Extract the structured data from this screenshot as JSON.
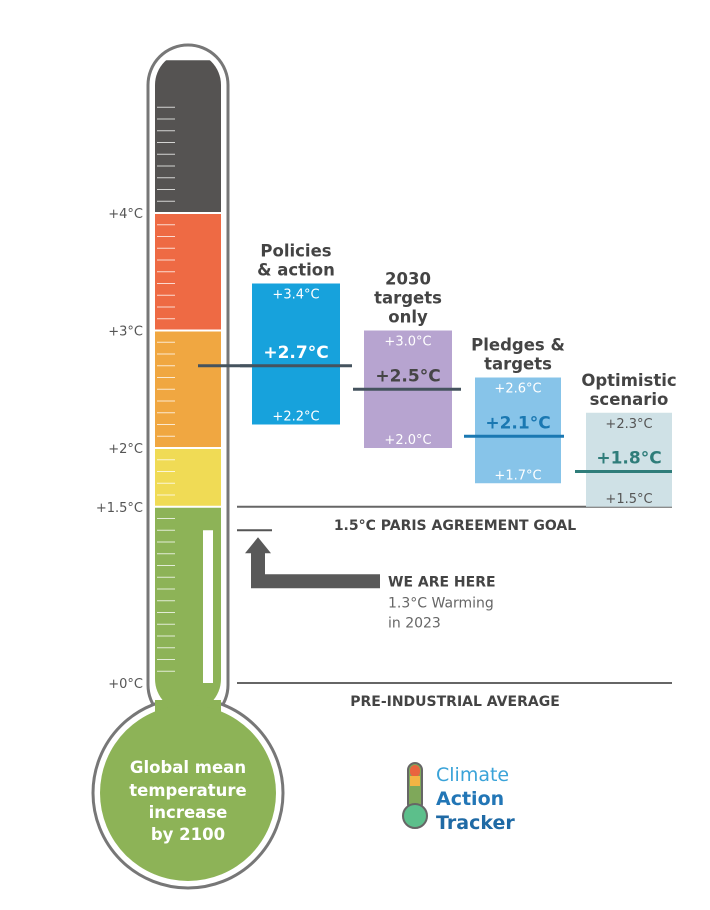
{
  "chart_data": {
    "type": "thermometer-range",
    "axis": {
      "ticks": [
        {
          "value": 0,
          "label": "+0°C"
        },
        {
          "value": 1.5,
          "label": "+1.5°C"
        },
        {
          "value": 2,
          "label": "+2°C"
        },
        {
          "value": 3,
          "label": "+3°C"
        },
        {
          "value": 4,
          "label": "+4°C"
        }
      ],
      "ylim": [
        0,
        5.3
      ]
    },
    "bands": [
      {
        "from": 0,
        "to": 1.5,
        "color": "#8db357"
      },
      {
        "from": 1.5,
        "to": 2.0,
        "color": "#f0db55"
      },
      {
        "from": 2.0,
        "to": 3.0,
        "color": "#f0a741"
      },
      {
        "from": 3.0,
        "to": 4.0,
        "color": "#ee6a44"
      },
      {
        "from": 4.0,
        "to": 5.3,
        "color": "#555352"
      }
    ],
    "bulb_label": [
      "Global mean",
      "temperature",
      "increase",
      "by 2100"
    ],
    "current_warming": {
      "value": 1.3,
      "title": "WE ARE HERE",
      "subtitle": [
        "1.3°C Warming",
        "in 2023"
      ]
    },
    "reference_lines": [
      {
        "value": 1.5,
        "label": "1.5°C PARIS AGREEMENT GOAL"
      },
      {
        "value": 0,
        "label": "PRE-INDUSTRIAL AVERAGE"
      }
    ],
    "scenarios": [
      {
        "title": [
          "Policies",
          "& action"
        ],
        "low": 2.2,
        "mid": 2.7,
        "high": 3.4,
        "low_label": "+2.2°C",
        "mid_label": "+2.7°C",
        "high_label": "+3.4°C",
        "fill": "#17a2dc",
        "line": "#45535e",
        "mid_text": "#ffffff",
        "range_text": "#ffffff"
      },
      {
        "title": [
          "2030",
          "targets",
          "only"
        ],
        "low": 2.0,
        "mid": 2.5,
        "high": 3.0,
        "low_label": "+2.0°C",
        "mid_label": "+2.5°C",
        "high_label": "+3.0°C",
        "fill": "#b7a4d0",
        "line": "#45535e",
        "mid_text": "#454545",
        "range_text": "#ffffff"
      },
      {
        "title": [
          "Pledges &",
          "targets"
        ],
        "low": 1.7,
        "mid": 2.1,
        "high": 2.6,
        "low_label": "+1.7°C",
        "mid_label": "+2.1°C",
        "high_label": "+2.6°C",
        "fill": "#87c4e9",
        "line": "#1a78b2",
        "mid_text": "#1a78b2",
        "range_text": "#ffffff"
      },
      {
        "title": [
          "Optimistic",
          "scenario"
        ],
        "low": 1.5,
        "mid": 1.8,
        "high": 2.3,
        "low_label": "+1.5°C",
        "mid_label": "+1.8°C",
        "high_label": "+2.3°C",
        "fill": "#cfe1e6",
        "line": "#2f7d7a",
        "mid_text": "#2f7d7a",
        "range_text": "#555555"
      }
    ],
    "logo": {
      "lines": [
        "Climate",
        "Action",
        "Tracker"
      ],
      "colors": [
        "#3aa3d8",
        "#2276b6",
        "#1f6aa5"
      ]
    }
  }
}
